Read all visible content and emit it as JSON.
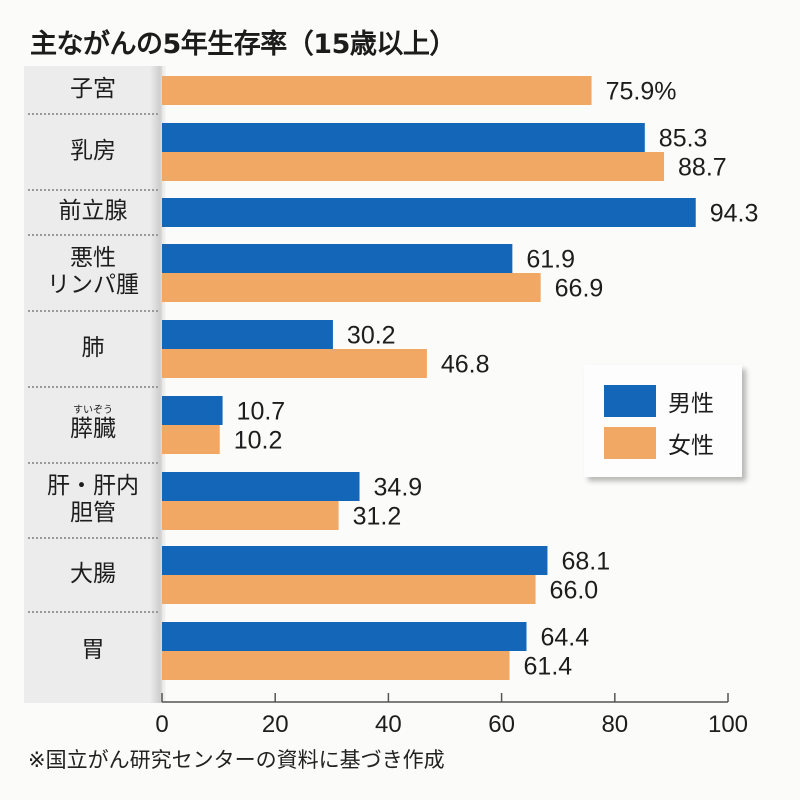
{
  "chart_data": {
    "type": "bar",
    "orientation": "horizontal",
    "title": "主ながんの5年生存率（15歳以上）",
    "xlabel": "",
    "ylabel": "",
    "xlim": [
      0,
      100
    ],
    "xticks": [
      "0",
      "20",
      "40",
      "60",
      "80",
      "100"
    ],
    "grid": false,
    "legend_position": "right",
    "categories": [
      {
        "label": "子宮",
        "ruby": ""
      },
      {
        "label": "乳房",
        "ruby": ""
      },
      {
        "label": "前立腺",
        "ruby": ""
      },
      {
        "label": "悪性\nリンパ腫",
        "lines": [
          "悪性",
          "リンパ腫"
        ],
        "ruby": ""
      },
      {
        "label": "肺",
        "ruby": ""
      },
      {
        "label": "膵臓",
        "ruby": "すいぞう"
      },
      {
        "label": "肝・肝内\n胆管",
        "lines": [
          "肝・肝内",
          "胆管"
        ],
        "ruby": ""
      },
      {
        "label": "大腸",
        "ruby": ""
      },
      {
        "label": "胃",
        "ruby": ""
      }
    ],
    "series": [
      {
        "name": "男性",
        "color": "#1466b8",
        "values": [
          null,
          85.3,
          94.3,
          61.9,
          30.2,
          10.7,
          34.9,
          68.1,
          64.4
        ],
        "labels": [
          "",
          "85.3",
          "94.3",
          "61.9",
          "30.2",
          "10.7",
          "34.9",
          "68.1",
          "64.4"
        ]
      },
      {
        "name": "女性",
        "color": "#f2a865",
        "values": [
          75.9,
          88.7,
          null,
          66.9,
          46.8,
          10.2,
          31.2,
          66.0,
          61.4
        ],
        "labels": [
          "75.9%",
          "88.7",
          "",
          "66.9",
          "46.8",
          "10.2",
          "31.2",
          "66.0",
          "61.4"
        ]
      }
    ],
    "note": "※国立がん研究センターの資料に基づき作成"
  }
}
